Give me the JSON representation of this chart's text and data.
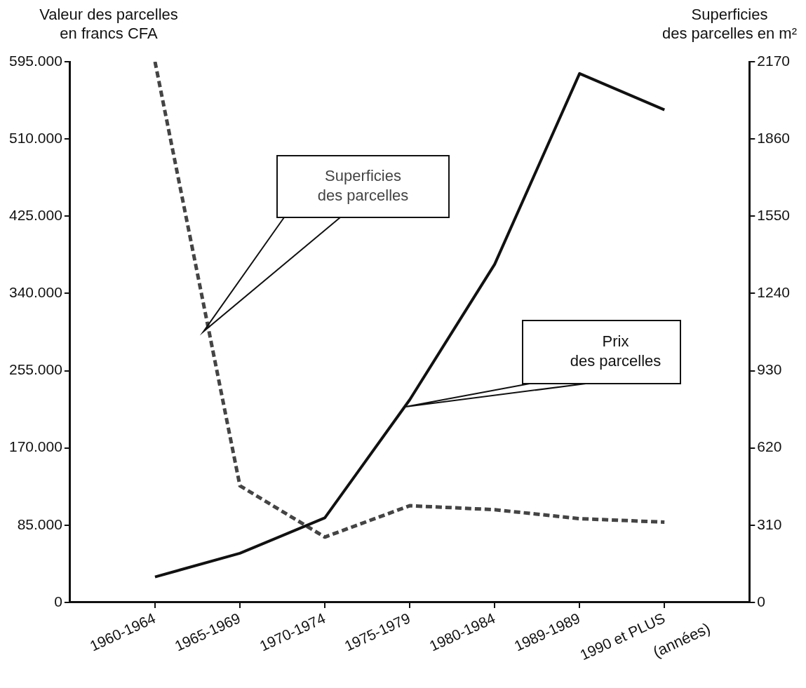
{
  "chart_data": {
    "type": "line",
    "categories": [
      "1960-1964",
      "1965-1969",
      "1970-1974",
      "1975-1979",
      "1980-1984",
      "1989-1989",
      "1990 et PLUS"
    ],
    "xlabel": "(années)",
    "ylabel": "Valeur des parcelles\nen francs CFA",
    "y2label": "Superficies\ndes parcelles en m²",
    "ylim": [
      0,
      595000
    ],
    "yticks": [
      {
        "value": 0,
        "label": "0"
      },
      {
        "value": 85000,
        "label": "85.000"
      },
      {
        "value": 170000,
        "label": "170.000"
      },
      {
        "value": 255000,
        "label": "255.000"
      },
      {
        "value": 340000,
        "label": "340.000"
      },
      {
        "value": 425000,
        "label": "425.000"
      },
      {
        "value": 510000,
        "label": "510.000"
      },
      {
        "value": 595000,
        "label": "595.000"
      }
    ],
    "y2lim": [
      0,
      2170
    ],
    "y2ticks": [
      0,
      310,
      620,
      930,
      1240,
      1550,
      1860,
      2170
    ],
    "grid": false,
    "legend": false,
    "marker": "none",
    "series": [
      {
        "name": "Prix\ndes parcelles",
        "color": "#111111",
        "line_style": "solid",
        "values": [
          28000,
          54000,
          93000,
          223000,
          372000,
          582000,
          542000
        ]
      },
      {
        "name": "Superficies\ndes parcelles",
        "color": "#444444",
        "line_style": "dashed",
        "axis": "y2",
        "values": [
          2170,
          468,
          262,
          388,
          372,
          336,
          322
        ]
      }
    ]
  }
}
